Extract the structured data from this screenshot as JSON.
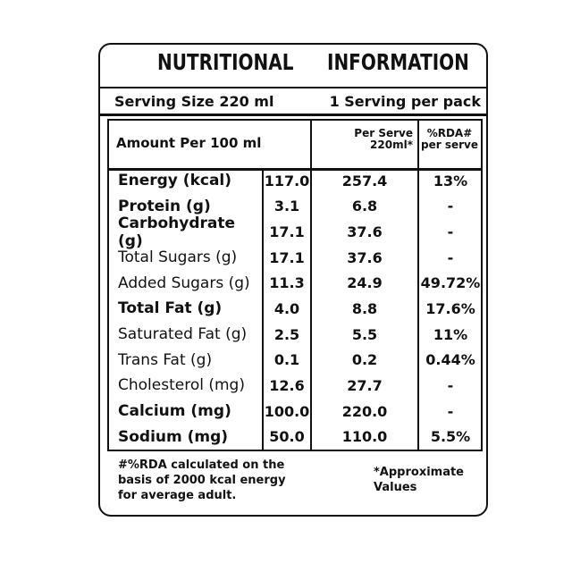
{
  "title": [
    "NUTRITIONAL",
    "INFORMATION"
  ],
  "serving": {
    "size": "Serving Size 220 ml",
    "per_pack": "1 Serving per pack"
  },
  "header": {
    "amount": "Amount Per 100 ml",
    "per_serve": [
      "Per Serve",
      "220ml*"
    ],
    "rda": [
      "%RDA#",
      "per serve"
    ]
  },
  "rows": [
    [
      "Energy (kcal)",
      "117.0",
      "257.4",
      "13%"
    ],
    [
      "Protein (g)",
      "3.1",
      "6.8",
      "-"
    ],
    [
      "Carbohydrate (g)",
      "17.1",
      "37.6",
      "-"
    ],
    [
      "Total Sugars (g)",
      "17.1",
      "37.6",
      "-"
    ],
    [
      "Added Sugars (g)",
      "11.3",
      "24.9",
      "49.72%"
    ],
    [
      "Total Fat (g)",
      "4.0",
      "8.8",
      "17.6%"
    ],
    [
      "Saturated Fat (g)",
      "2.5",
      "5.5",
      "11%"
    ],
    [
      "Trans Fat (g)",
      "0.1",
      "0.2",
      "0.44%"
    ],
    [
      "Cholesterol (mg)",
      "12.6",
      "27.7",
      "-"
    ],
    [
      "Calcium (mg)",
      "100.0",
      "220.0",
      "-"
    ],
    [
      "Sodium (mg)",
      "50.0",
      "110.0",
      "5.5%"
    ]
  ],
  "footer": {
    "note": "#%RDA calculated on the basis of 2000 kcal energy for average adult.",
    "approx": "*Approximate Values"
  }
}
